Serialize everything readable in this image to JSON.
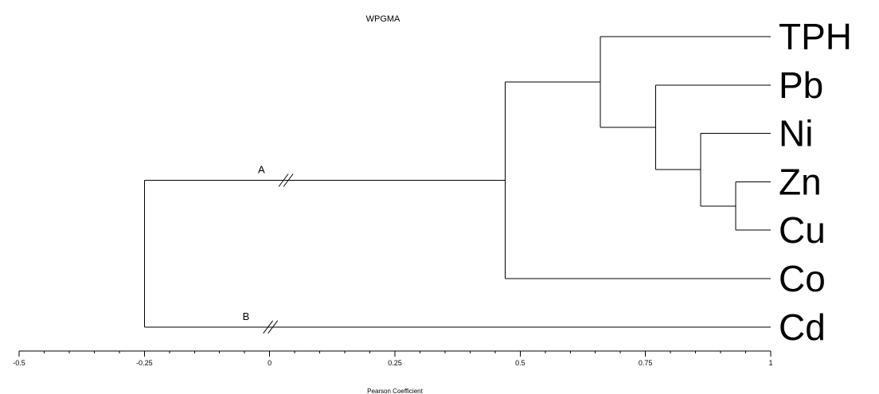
{
  "chart_data": {
    "type": "dendrogram",
    "title": "WPGMA",
    "xlabel": "Pearson Coefficient",
    "xlim": [
      -0.5,
      1
    ],
    "xticks": [
      "-0.5",
      "-0.25",
      "0",
      "0.25",
      "0.5",
      "0.75",
      "1"
    ],
    "xtick_values": [
      -0.5,
      -0.25,
      0,
      0.25,
      0.5,
      0.75,
      1
    ],
    "leaves": [
      "TPH",
      "Pb",
      "Ni",
      "Zn",
      "Cu",
      "Co",
      "Cd"
    ],
    "merges": [
      {
        "id": "m1",
        "children": [
          "Zn",
          "Cu"
        ],
        "similarity": 0.93
      },
      {
        "id": "m2",
        "children": [
          "Ni",
          "m1"
        ],
        "similarity": 0.86
      },
      {
        "id": "m3",
        "children": [
          "Pb",
          "m2"
        ],
        "similarity": 0.77
      },
      {
        "id": "m4",
        "children": [
          "TPH",
          "m3"
        ],
        "similarity": 0.66
      },
      {
        "id": "m5",
        "children": [
          "m4",
          "Co"
        ],
        "similarity": 0.47
      },
      {
        "id": "m6",
        "children": [
          "m5",
          "Cd"
        ],
        "similarity": -0.25
      }
    ],
    "branch_labels": [
      {
        "text": "A",
        "branch": "m5"
      },
      {
        "text": "B",
        "branch": "Cd"
      }
    ],
    "axis_breaks": [
      "A",
      "B"
    ]
  }
}
